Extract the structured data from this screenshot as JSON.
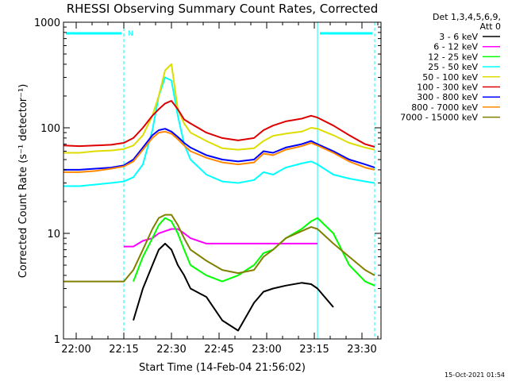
{
  "chart_data": {
    "type": "line",
    "title": "RHESSI Observing Summary Count Rates, Corrected",
    "xlabel": "Start Time (14-Feb-04 21:56:02)",
    "ylabel": "Corrected Count Rate (s⁻¹ detector⁻¹)",
    "yscale": "log",
    "ylim": [
      1,
      1000
    ],
    "xlim_minutes": [
      0,
      100
    ],
    "x_tick_labels": [
      "22:00",
      "22:15",
      "22:30",
      "22:45",
      "23:00",
      "23:15",
      "23:30"
    ],
    "x_ticks_minutes": [
      4,
      19,
      34,
      49,
      64,
      79,
      94
    ],
    "y_tick_labels": [
      "1",
      "10",
      "100",
      "1000"
    ],
    "y_ticks": [
      1,
      10,
      100,
      1000
    ],
    "legend_header": [
      "Det 1,3,4,5,6,9,",
      "Att 0"
    ],
    "legend_position": "right",
    "timestamp": "15-Oct-2021 01:54",
    "night_marker": "N",
    "night_bars_minutes": [
      [
        0,
        19
      ],
      [
        80,
        98
      ]
    ],
    "vlines_solid_minutes": [
      0,
      80
    ],
    "vlines_dashed_minutes": [
      19,
      98
    ],
    "x_sample_minutes": [
      0,
      5,
      10,
      15,
      19,
      22,
      25,
      28,
      30,
      32,
      34,
      36,
      38,
      40,
      45,
      50,
      55,
      60,
      63,
      66,
      70,
      75,
      78,
      80,
      85,
      90,
      95,
      98
    ],
    "series": [
      {
        "name": "3 - 6 keV",
        "color": "#000000",
        "values": [
          null,
          null,
          null,
          null,
          null,
          1.5,
          3,
          5,
          7,
          8,
          7,
          5,
          4,
          3,
          2.5,
          1.5,
          1.2,
          2.2,
          2.8,
          3,
          3.2,
          3.4,
          3.3,
          3,
          2,
          null,
          null,
          null
        ]
      },
      {
        "name": "6 - 12 keV",
        "color": "#ff00ff",
        "values": [
          null,
          null,
          null,
          null,
          7.5,
          7.5,
          8.5,
          9,
          10,
          10.5,
          11,
          11,
          10,
          9,
          8,
          8,
          8,
          8,
          8,
          8,
          8,
          8,
          8,
          8,
          null,
          null,
          null,
          null
        ]
      },
      {
        "name": "12 - 25 keV",
        "color": "#00ff00",
        "values": [
          null,
          null,
          null,
          null,
          null,
          3.5,
          6,
          9,
          12,
          14,
          13,
          10,
          7,
          5,
          4,
          3.5,
          4,
          5,
          6.5,
          7,
          9,
          11,
          13,
          14,
          10,
          5,
          3.5,
          3.2
        ]
      },
      {
        "name": "25 - 50 keV",
        "color": "#00ffff",
        "values": [
          28,
          28,
          29,
          30,
          31,
          34,
          45,
          95,
          200,
          300,
          280,
          130,
          70,
          50,
          36,
          31,
          30,
          32,
          38,
          36,
          42,
          46,
          48,
          45,
          36,
          33,
          31,
          30
        ]
      },
      {
        "name": "50 - 100 keV",
        "color": "#dddd00",
        "values": [
          58,
          58,
          60,
          61,
          63,
          68,
          85,
          130,
          200,
          350,
          400,
          150,
          110,
          90,
          75,
          64,
          62,
          64,
          75,
          84,
          88,
          92,
          100,
          98,
          85,
          72,
          65,
          62
        ]
      },
      {
        "name": "100 - 300 keV",
        "color": "#dd0000",
        "values": [
          68,
          67,
          68,
          69,
          72,
          80,
          100,
          130,
          150,
          170,
          180,
          150,
          120,
          110,
          90,
          80,
          76,
          80,
          95,
          105,
          115,
          122,
          130,
          125,
          105,
          85,
          70,
          66
        ]
      },
      {
        "name": "300 - 800 keV",
        "color": "#0000ff",
        "values": [
          40,
          40,
          41,
          42,
          44,
          50,
          65,
          85,
          95,
          98,
          92,
          82,
          72,
          65,
          55,
          50,
          48,
          50,
          60,
          58,
          65,
          70,
          75,
          70,
          60,
          50,
          45,
          42
        ]
      },
      {
        "name": "800 - 7000 keV",
        "color": "#ff8800",
        "values": [
          38,
          38,
          39,
          41,
          43,
          48,
          62,
          80,
          90,
          92,
          88,
          78,
          68,
          60,
          52,
          47,
          45,
          47,
          57,
          55,
          62,
          67,
          72,
          68,
          58,
          48,
          42,
          40
        ]
      },
      {
        "name": "7000 - 15000 keV",
        "color": "#808000",
        "values": [
          3.5,
          3.5,
          3.5,
          3.5,
          3.5,
          4.5,
          7,
          11,
          14,
          15,
          15,
          12,
          9,
          7,
          5.5,
          4.5,
          4.2,
          4.5,
          6,
          7,
          9,
          10.5,
          11.5,
          11,
          8,
          6,
          4.5,
          4
        ]
      }
    ]
  }
}
